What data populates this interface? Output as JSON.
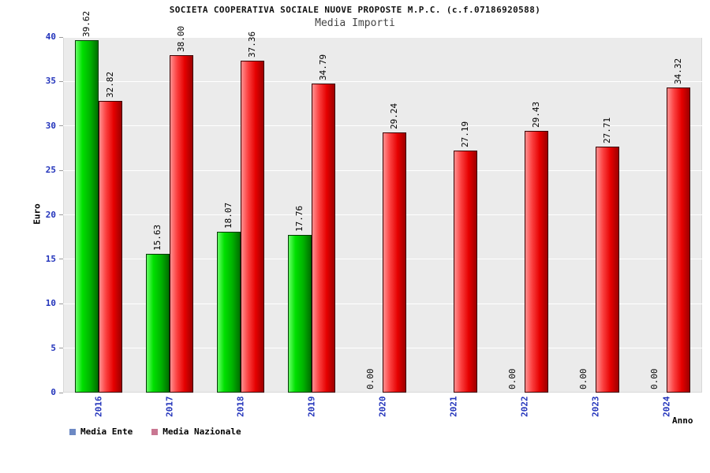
{
  "chart_data": {
    "type": "bar",
    "title": "SOCIETA COOPERATIVA SOCIALE NUOVE PROPOSTE M.P.C. (c.f.07186920588)",
    "subtitle": "Media Importi",
    "xlabel": "Anno",
    "ylabel": "Euro",
    "ylim": [
      0,
      40
    ],
    "ytick_step": 5,
    "grid": true,
    "legend_position": "bottom",
    "categories": [
      "2016",
      "2017",
      "2018",
      "2019",
      "2020",
      "2021",
      "2022",
      "2023",
      "2024"
    ],
    "series": [
      {
        "name": "Media Ente",
        "legend_color": "#6d89c4",
        "bar_color": "#00cc00",
        "values": [
          39.62,
          15.63,
          18.07,
          17.76,
          0,
          0,
          0,
          0,
          0
        ],
        "value_labels": [
          "39.62",
          "15.63",
          "18.07",
          "17.76",
          "0.00",
          "",
          "0.00",
          "0.00",
          "0.00"
        ]
      },
      {
        "name": "Media Nazionale",
        "legend_color": "#c97792",
        "bar_color": "#ee2222",
        "values": [
          32.82,
          38.0,
          37.36,
          34.79,
          29.24,
          27.19,
          29.43,
          27.71,
          34.32
        ],
        "value_labels": [
          "32.82",
          "38.00",
          "37.36",
          "34.79",
          "29.24",
          "27.19",
          "29.43",
          "27.71",
          "34.32"
        ]
      }
    ]
  }
}
